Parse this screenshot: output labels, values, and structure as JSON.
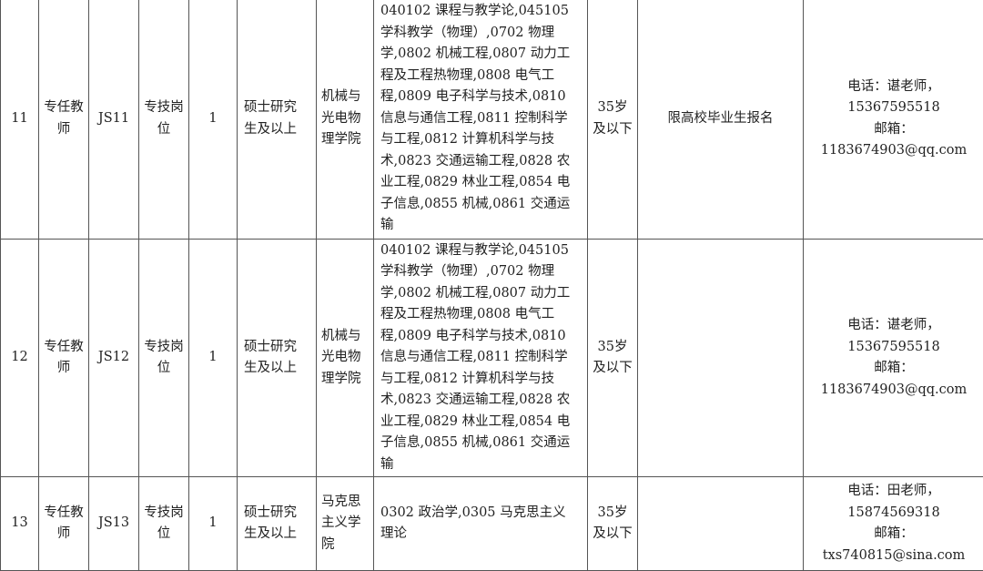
{
  "rows": [
    {
      "no": "11",
      "type": "专任教师",
      "code": "JS11",
      "post": "专技岗位",
      "count": "1",
      "edu": "硕士研究生及以上",
      "dept": "机械与光电物理学院",
      "major_lines": [
        "040102 课程与教学论,045105",
        "学科教学（物理）,0702 物理",
        "学,0802 机械工程,0807 动力工",
        "程及工程热物理,0808 电气工",
        "程,0809 电子科学与技术,0810",
        "信息与通信工程,0811 控制科学",
        "与工程,0812 计算机科学与技",
        "术,0823 交通运输工程,0828 农",
        "业工程,0829 林业工程,0854 电",
        "子信息,0855 机械,0861 交通运",
        "输"
      ],
      "age": "35岁及以下",
      "note": "限高校毕业生报名",
      "contact": [
        "电话：谌老师，",
        "15367595518",
        "邮箱：",
        "1183674903@qq.com"
      ]
    },
    {
      "no": "12",
      "type": "专任教师",
      "code": "JS12",
      "post": "专技岗位",
      "count": "1",
      "edu": "硕士研究生及以上",
      "dept": "机械与光电物理学院",
      "major_lines": [
        "040102 课程与教学论,045105",
        "学科教学（物理）,0702 物理",
        "学,0802 机械工程,0807 动力工",
        "程及工程热物理,0808 电气工",
        "程,0809 电子科学与技术,0810",
        "信息与通信工程,0811 控制科学",
        "与工程,0812 计算机科学与技",
        "术,0823 交通运输工程,0828 农",
        "业工程,0829 林业工程,0854 电",
        "子信息,0855 机械,0861 交通运",
        "输"
      ],
      "age": "35岁及以下",
      "note": "",
      "contact": [
        "电话：谌老师，",
        "15367595518",
        "邮箱：",
        "1183674903@qq.com"
      ]
    },
    {
      "no": "13",
      "type": "专任教师",
      "code": "JS13",
      "post": "专技岗位",
      "count": "1",
      "edu": "硕士研究生及以上",
      "dept": "马克思主义学院",
      "major_lines": [
        "0302 政治学,0305 马克思主义",
        "理论"
      ],
      "age": "35岁及以下",
      "note": "",
      "contact": [
        "电话：田老师，",
        "15874569318",
        "邮箱：txs740815@sina.com"
      ]
    }
  ]
}
